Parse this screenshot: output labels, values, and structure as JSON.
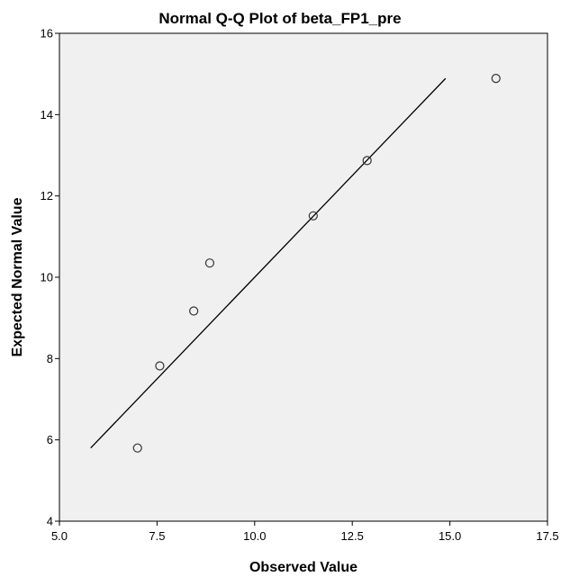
{
  "chart_data": {
    "type": "scatter",
    "title": "Normal Q-Q Plot of beta_FP1_pre",
    "xlabel": "Observed Value",
    "ylabel": "Expected Normal Value",
    "xlim": [
      5.0,
      17.5
    ],
    "ylim": [
      4,
      16
    ],
    "xticks": [
      "5.0",
      "7.5",
      "10.0",
      "12.5",
      "15.0",
      "17.5"
    ],
    "yticks": [
      "4",
      "6",
      "8",
      "10",
      "12",
      "14",
      "16"
    ],
    "grid": false,
    "points": [
      {
        "x": 7.0,
        "y": 5.8
      },
      {
        "x": 7.57,
        "y": 7.82
      },
      {
        "x": 8.44,
        "y": 9.17
      },
      {
        "x": 8.85,
        "y": 10.35
      },
      {
        "x": 11.5,
        "y": 11.51
      },
      {
        "x": 12.88,
        "y": 12.87
      },
      {
        "x": 16.18,
        "y": 14.89
      }
    ],
    "reference_line": {
      "x": [
        5.8,
        14.89
      ],
      "y": [
        5.8,
        14.89
      ]
    },
    "colors": {
      "plot_background": "#f0f0f0",
      "marker_stroke": "#333333",
      "line": "#000000"
    }
  }
}
